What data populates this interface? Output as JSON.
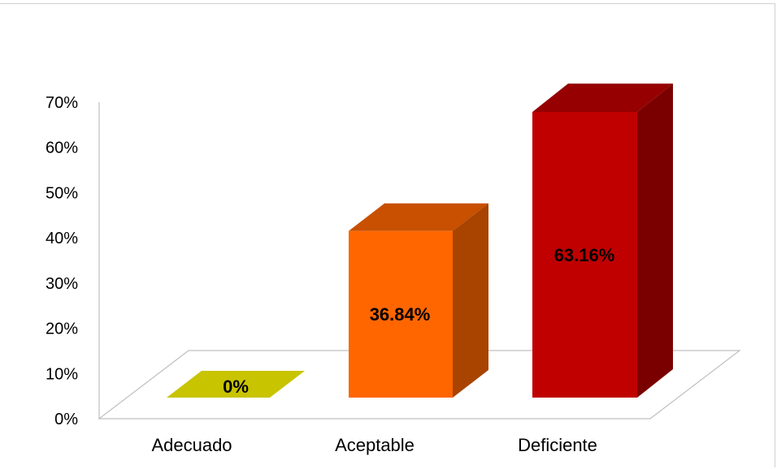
{
  "chart_data": {
    "type": "bar",
    "categories": [
      "Adecuado",
      "Aceptable",
      "Deficiente"
    ],
    "values": [
      0,
      36.84,
      63.16
    ],
    "data_labels": [
      "0%",
      "36.84%",
      "63.16%"
    ],
    "ylim": [
      0,
      70
    ],
    "yticks": [
      "0%",
      "10%",
      "20%",
      "30%",
      "40%",
      "50%",
      "60%",
      "70%"
    ],
    "grid": false,
    "legend": "none",
    "colors": [
      {
        "front": "#c8c400",
        "top": "#b5b000",
        "side": "#8f8c00"
      },
      {
        "front": "#ff6600",
        "top": "#c85000",
        "side": "#a84400"
      },
      {
        "front": "#c00000",
        "top": "#960000",
        "side": "#7a0000"
      }
    ]
  }
}
